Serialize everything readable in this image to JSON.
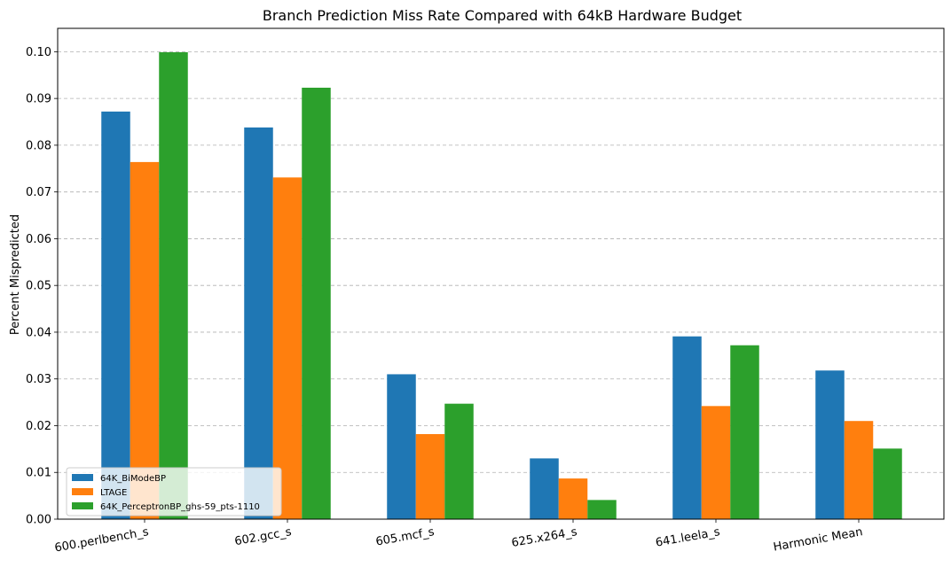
{
  "chart_data": {
    "type": "bar",
    "title": "Branch Prediction Miss Rate Compared with 64kB Hardware Budget",
    "xlabel": "",
    "ylabel": "Percent Mispredicted",
    "categories": [
      "600.perlbench_s",
      "602.gcc_s",
      "605.mcf_s",
      "625.x264_s",
      "641.leela_s",
      "Harmonic Mean"
    ],
    "series": [
      {
        "name": "64K_BiModeBP",
        "color": "#1f77b4",
        "values": [
          0.0872,
          0.0838,
          0.031,
          0.013,
          0.0391,
          0.0318
        ]
      },
      {
        "name": "LTAGE",
        "color": "#ff7f0e",
        "values": [
          0.0764,
          0.0731,
          0.0182,
          0.0087,
          0.0242,
          0.021
        ]
      },
      {
        "name": "64K_PerceptronBP_ghs-59_pts-1110",
        "color": "#2ca02c",
        "values": [
          0.0999,
          0.0923,
          0.0247,
          0.0041,
          0.0372,
          0.0151
        ]
      }
    ],
    "ylim": [
      0,
      0.105
    ],
    "yticks": [
      "0.00",
      "0.01",
      "0.02",
      "0.03",
      "0.04",
      "0.05",
      "0.06",
      "0.07",
      "0.08",
      "0.09",
      "0.10"
    ],
    "grid": "y-dashed",
    "legend_position": "lower-left"
  }
}
